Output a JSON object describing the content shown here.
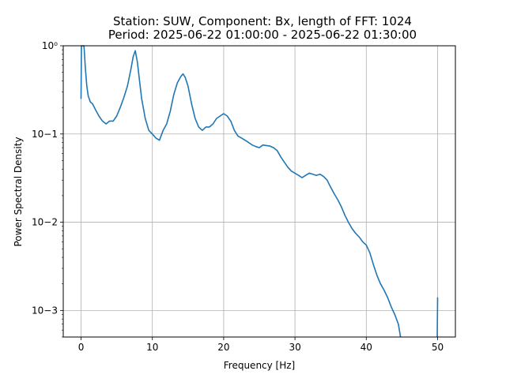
{
  "chart_data": {
    "type": "line",
    "title_line1": "Station: SUW, Component: Bx, length of FFT: 1024",
    "title_line2": "Period: 2025-06-22 01:00:00 - 2025-06-22 01:30:00",
    "xlabel": "Frequency [Hz]",
    "ylabel": "Power Spectral Density",
    "xlim": [
      -2.5,
      52.5
    ],
    "ylim": [
      0.0005,
      1
    ],
    "yscale": "log",
    "grid": true,
    "xticks": [
      0,
      10,
      20,
      30,
      40,
      50
    ],
    "xtick_labels": [
      "0",
      "10",
      "20",
      "30",
      "40",
      "50"
    ],
    "yticks": [
      0.001,
      0.01,
      0.1,
      1
    ],
    "ytick_labels": [
      "10−3",
      "10−2",
      "10−1",
      "10⁰"
    ],
    "line_color": "#1f77b4",
    "series": [
      {
        "x": [
          0,
          0.05,
          0.1,
          0.15,
          0.25,
          0.4,
          0.6,
          0.8,
          1.0,
          1.3,
          1.6,
          2.0,
          2.5,
          3.0,
          3.5,
          4.0,
          4.5,
          5.0,
          5.5,
          6.0,
          6.5,
          7.0,
          7.3,
          7.6,
          7.9,
          8.2,
          8.5,
          9.0,
          9.5,
          10.0,
          10.5,
          11.0,
          11.5,
          12.0,
          12.5,
          13.0,
          13.5,
          14.0,
          14.3,
          14.6,
          15.0,
          15.5,
          16.0,
          16.5,
          17.0,
          17.5,
          18.0,
          18.5,
          19.0,
          19.5,
          20.0,
          20.5,
          21.0,
          21.5,
          22.0,
          22.5,
          23.0,
          23.5,
          24.0,
          24.5,
          25.0,
          25.5,
          26.0,
          26.5,
          27.0,
          27.5,
          28.0,
          28.5,
          29.0,
          29.5,
          30.0,
          30.5,
          31.0,
          31.5,
          32.0,
          32.5,
          33.0,
          33.5,
          34.0,
          34.5,
          35.0,
          35.5,
          36.0,
          36.5,
          37.0,
          37.5,
          38.0,
          38.5,
          39.0,
          39.5,
          40.0,
          40.5,
          41.0,
          41.5,
          42.0,
          42.5,
          43.0,
          43.5,
          44.0,
          44.5,
          44.8
        ],
        "y": [
          0.25,
          1.0,
          1.0,
          1.0,
          1.0,
          1.0,
          0.55,
          0.35,
          0.27,
          0.23,
          0.22,
          0.19,
          0.16,
          0.14,
          0.13,
          0.14,
          0.14,
          0.16,
          0.2,
          0.26,
          0.35,
          0.55,
          0.75,
          0.88,
          0.65,
          0.4,
          0.25,
          0.15,
          0.11,
          0.1,
          0.09,
          0.085,
          0.11,
          0.13,
          0.18,
          0.28,
          0.38,
          0.45,
          0.48,
          0.44,
          0.35,
          0.22,
          0.15,
          0.12,
          0.11,
          0.12,
          0.12,
          0.13,
          0.15,
          0.16,
          0.17,
          0.16,
          0.14,
          0.11,
          0.095,
          0.09,
          0.085,
          0.08,
          0.075,
          0.072,
          0.07,
          0.075,
          0.074,
          0.073,
          0.07,
          0.065,
          0.055,
          0.048,
          0.042,
          0.038,
          0.036,
          0.034,
          0.032,
          0.034,
          0.036,
          0.035,
          0.034,
          0.035,
          0.033,
          0.03,
          0.025,
          0.021,
          0.018,
          0.015,
          0.012,
          0.01,
          0.0085,
          0.0075,
          0.0068,
          0.006,
          0.0055,
          0.0045,
          0.0033,
          0.0025,
          0.002,
          0.0017,
          0.0014,
          0.0011,
          0.0009,
          0.0007,
          0.0005
        ]
      },
      {
        "x": [
          49.95,
          49.98,
          50.0,
          50.02
        ],
        "y": [
          0.0005,
          0.0009,
          0.0014,
          0.0014
        ]
      }
    ]
  }
}
